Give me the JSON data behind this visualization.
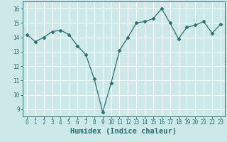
{
  "x": [
    0,
    1,
    2,
    3,
    4,
    5,
    6,
    7,
    8,
    9,
    10,
    11,
    12,
    13,
    14,
    15,
    16,
    17,
    18,
    19,
    20,
    21,
    22,
    23
  ],
  "y": [
    14.2,
    13.7,
    14.0,
    14.4,
    14.5,
    14.2,
    13.4,
    12.8,
    11.1,
    8.8,
    10.8,
    13.1,
    14.0,
    15.0,
    15.1,
    15.3,
    16.0,
    15.0,
    13.9,
    14.7,
    14.85,
    15.1,
    14.3,
    14.9
  ],
  "xlabel": "Humidex (Indice chaleur)",
  "ylim": [
    8.5,
    16.5
  ],
  "xlim": [
    -0.5,
    23.5
  ],
  "yticks": [
    9,
    10,
    11,
    12,
    13,
    14,
    15,
    16
  ],
  "xticks": [
    0,
    1,
    2,
    3,
    4,
    5,
    6,
    7,
    8,
    9,
    10,
    11,
    12,
    13,
    14,
    15,
    16,
    17,
    18,
    19,
    20,
    21,
    22,
    23
  ],
  "line_color": "#2d6e6e",
  "marker": "D",
  "marker_size": 2.5,
  "bg_color": "#cce8e8",
  "grid_color": "#ffffff",
  "tick_label_fontsize": 5.5,
  "xlabel_fontsize": 7.5,
  "font_family": "monospace"
}
